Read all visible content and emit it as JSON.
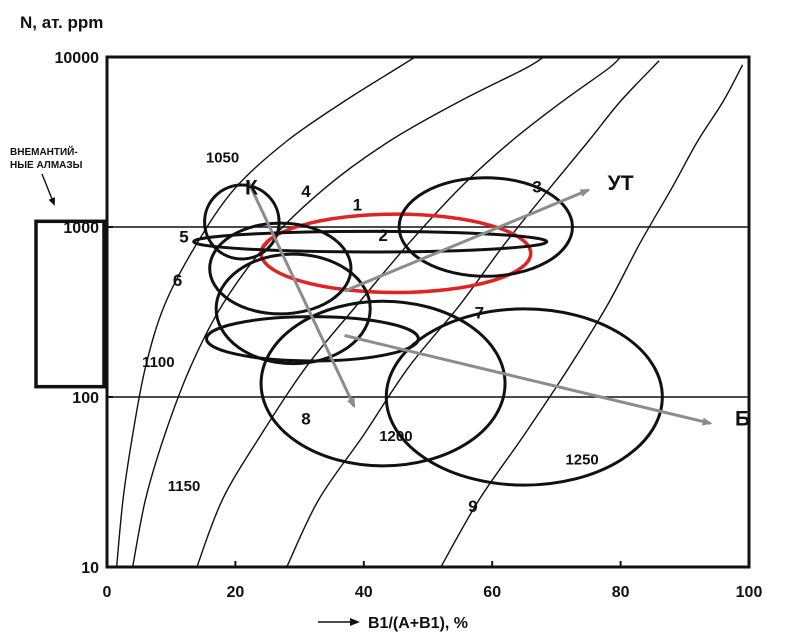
{
  "chart_data": {
    "type": "scatter",
    "ylabel": "N, ат. ppm",
    "xlabel": "B1/(A+B1), %",
    "xlim": [
      0,
      100
    ],
    "ylim": [
      10,
      10000
    ],
    "yscale": "log",
    "x_ticks": [
      "0",
      "20",
      "40",
      "60",
      "80",
      "100"
    ],
    "x_tick_values": [
      0,
      20,
      40,
      60,
      80,
      100
    ],
    "y_ticks": [
      "10",
      "100",
      "1000",
      "10000"
    ],
    "y_tick_values": [
      10,
      100,
      1000,
      10000
    ],
    "horizontal_lines": [
      100,
      1000
    ],
    "side_box": {
      "label": "ВНЕМАНТИЙ-\nНЫЕ АЛМАЗЫ",
      "y_range": [
        115,
        1080
      ]
    },
    "isotherms": [
      {
        "label": "1050",
        "label_at": [
          18,
          2400
        ],
        "points": [
          [
            1.5,
            10
          ],
          [
            2.5,
            25
          ],
          [
            4,
            60
          ],
          [
            6,
            150
          ],
          [
            9,
            350
          ],
          [
            14,
            800
          ],
          [
            20,
            1700
          ],
          [
            28,
            3200
          ],
          [
            37,
            5500
          ],
          [
            45,
            8500
          ],
          [
            48,
            10000
          ]
        ]
      },
      {
        "label": "1100",
        "label_at": [
          8,
          150
        ],
        "points": [
          [
            4,
            10
          ],
          [
            6,
            25
          ],
          [
            9,
            60
          ],
          [
            13,
            150
          ],
          [
            18,
            350
          ],
          [
            25,
            800
          ],
          [
            34,
            1700
          ],
          [
            44,
            3200
          ],
          [
            55,
            5500
          ],
          [
            65,
            8500
          ],
          [
            68,
            10000
          ]
        ]
      },
      {
        "label": "1150",
        "label_at": [
          12,
          28
        ],
        "points": [
          [
            14,
            10
          ],
          [
            18,
            25
          ],
          [
            24,
            60
          ],
          [
            31,
            150
          ],
          [
            39,
            350
          ],
          [
            47,
            800
          ],
          [
            55,
            1700
          ],
          [
            63,
            3200
          ],
          [
            71,
            5500
          ],
          [
            78,
            8500
          ],
          [
            80,
            10000
          ]
        ]
      },
      {
        "label": "1200",
        "label_at": [
          45,
          55
        ],
        "points": [
          [
            28,
            10
          ],
          [
            33,
            25
          ],
          [
            40,
            60
          ],
          [
            47,
            150
          ],
          [
            55,
            350
          ],
          [
            62,
            800
          ],
          [
            69,
            1700
          ],
          [
            75,
            3200
          ],
          [
            80,
            5500
          ],
          [
            86,
            9500
          ]
        ]
      },
      {
        "label": "1250",
        "label_at": [
          74,
          40
        ],
        "points": [
          [
            52,
            10
          ],
          [
            58,
            25
          ],
          [
            65,
            60
          ],
          [
            72,
            150
          ],
          [
            78,
            350
          ],
          [
            83,
            800
          ],
          [
            88,
            1700
          ],
          [
            92,
            3200
          ],
          [
            96,
            5500
          ],
          [
            99,
            9000
          ]
        ]
      }
    ],
    "series": [
      {
        "name": "1",
        "cx": 45,
        "cy": 700,
        "rx": 21,
        "ry_factor": 1.7,
        "color": "#e02424",
        "label_at": [
          39,
          1250
        ]
      },
      {
        "name": "2",
        "cx": 41,
        "cy": 820,
        "rx": 27.5,
        "ry_factor": 1.15,
        "color": "#111111",
        "label_at": [
          43,
          830
        ]
      },
      {
        "name": "3",
        "cx": 59,
        "cy": 1000,
        "rx": 13.5,
        "ry_factor": 1.95,
        "color": "#111111",
        "label_at": [
          67,
          1600
        ]
      },
      {
        "name": "4",
        "cx": 21,
        "cy": 1070,
        "rx": 5.8,
        "ry_factor": 1.65,
        "color": "#111111",
        "label_at": [
          31,
          1500
        ]
      },
      {
        "name": "5",
        "cx": 27,
        "cy": 570,
        "rx": 11,
        "ry_factor": 1.85,
        "color": "#111111",
        "label_at": [
          12,
          810
        ]
      },
      {
        "name": "6",
        "cx": 29,
        "cy": 330,
        "rx": 12,
        "ry_factor": 2.1,
        "color": "#111111",
        "label_at": [
          11,
          450
        ]
      },
      {
        "name": "7",
        "cx": 32,
        "cy": 220,
        "rx": 16.5,
        "ry_factor": 1.35,
        "color": "#111111",
        "label_at": [
          58,
          290
        ]
      },
      {
        "name": "8",
        "cx": 43,
        "cy": 120,
        "rx": 19,
        "ry_factor": 3.05,
        "color": "#111111",
        "label_at": [
          31,
          69
        ]
      },
      {
        "name": "9",
        "cx": 65,
        "cy": 100,
        "rx": 21.5,
        "ry_factor": 3.3,
        "color": "#111111",
        "label_at": [
          57,
          21
        ]
      }
    ],
    "arrows": [
      {
        "label": "К",
        "from": [
          22,
          1850
        ],
        "to": [
          38.5,
          88
        ],
        "label_at": [
          22.5,
          1550
        ]
      },
      {
        "label": "УТ",
        "from": [
          37,
          420
        ],
        "to": [
          75,
          1650
        ],
        "label_at": [
          80,
          1650
        ]
      },
      {
        "label": "Б",
        "from": [
          37,
          230
        ],
        "to": [
          94,
          70
        ],
        "label_at": [
          99,
          68
        ]
      }
    ]
  },
  "labels": {
    "ylabel": "N, ат. ppm",
    "xlabel": "B1/(A+B1), %",
    "side_box_line1": "ВНЕМАНТИЙ-",
    "side_box_line2": "НЫЕ АЛМАЗЫ"
  },
  "colors": {
    "axis": "#111111",
    "arrow": "#8c8c8c",
    "highlight": "#e02424"
  }
}
